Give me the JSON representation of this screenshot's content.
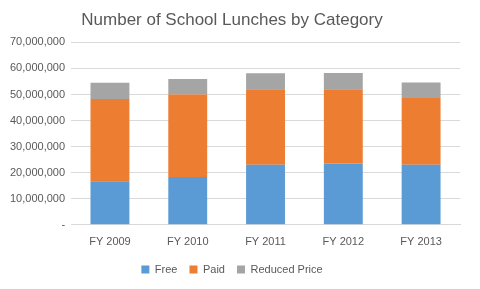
{
  "chart_data": {
    "type": "bar",
    "title": "Number of School Lunches by Category",
    "categories": [
      "FY 2009",
      "FY 2010",
      "FY 2011",
      "FY 2012",
      "FY 2013"
    ],
    "series": [
      {
        "name": "Free",
        "color": "#5b9bd5",
        "values": [
          16700000,
          18300000,
          23000000,
          23500000,
          23000000
        ]
      },
      {
        "name": "Paid",
        "color": "#ed7d31",
        "values": [
          31600000,
          31700000,
          29000000,
          28500000,
          25700000
        ]
      },
      {
        "name": "Reduced Price",
        "color": "#a5a5a5",
        "values": [
          6200000,
          6000000,
          6200000,
          6300000,
          5900000
        ]
      }
    ],
    "stacked": true,
    "ylim": [
      0,
      70000000
    ],
    "yticks": [
      {
        "value": 0,
        "label": "-"
      },
      {
        "value": 10000000,
        "label": "10,000,000"
      },
      {
        "value": 20000000,
        "label": "20,000,000"
      },
      {
        "value": 30000000,
        "label": "30,000,000"
      },
      {
        "value": 40000000,
        "label": "40,000,000"
      },
      {
        "value": 50000000,
        "label": "50,000,000"
      },
      {
        "value": 60000000,
        "label": "60,000,000"
      },
      {
        "value": 70000000,
        "label": "70,000,000"
      }
    ],
    "grid": true,
    "legend": "bottom"
  }
}
